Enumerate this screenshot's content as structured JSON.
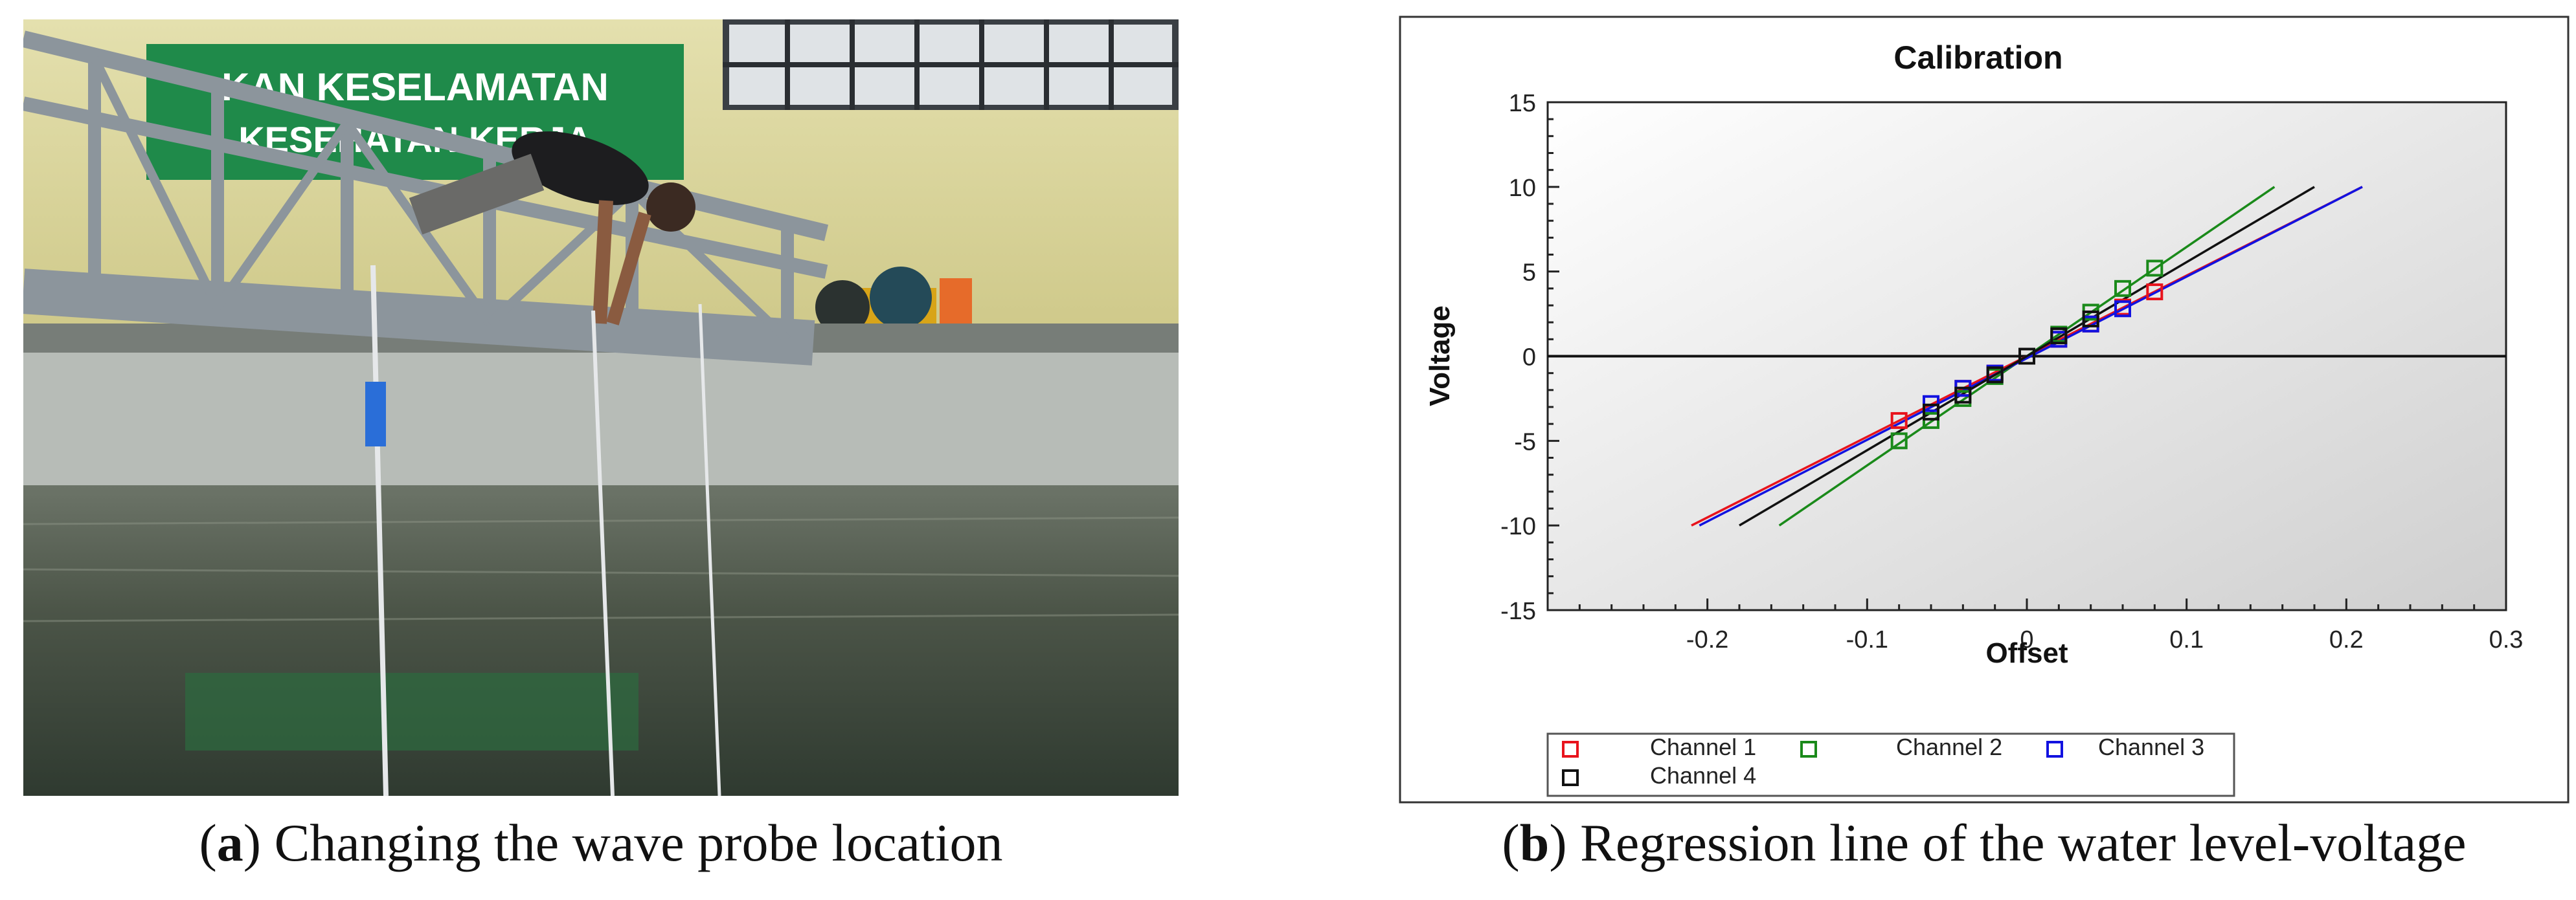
{
  "photo": {
    "sign_line1": "KAN KESELAMATAN",
    "sign_line2": "KESEHATAN KERJA",
    "colors": {
      "wall": "#d9d49a",
      "truss": "#8c959c",
      "water": "#4c5548",
      "sign": "#1f8a4a"
    }
  },
  "captions": {
    "a": {
      "letter": "a",
      "text": "Changing the wave probe location"
    },
    "b": {
      "letter": "b",
      "text": "Regression line of the water level-voltage"
    }
  },
  "chart_data": {
    "type": "scatter",
    "title": "Calibration",
    "xlabel": "Offset",
    "ylabel": "Voltage",
    "xlim": [
      -0.3,
      0.3
    ],
    "ylim": [
      -15,
      15
    ],
    "xticks": [
      "-0.2",
      "-0.1",
      "0",
      "0.1",
      "0.2",
      "0.3"
    ],
    "yticks": [
      "15",
      "10",
      "5",
      "0",
      "-5",
      "-10",
      "-15"
    ],
    "grid": false,
    "legend_position": "bottom",
    "series": [
      {
        "name": "Channel 1",
        "color": "#e8131c",
        "points": [
          [
            -0.08,
            -3.8
          ],
          [
            -0.04,
            -1.9
          ],
          [
            -0.02,
            -1.0
          ],
          [
            0.0,
            0.0
          ],
          [
            0.02,
            1.0
          ],
          [
            0.04,
            1.9
          ],
          [
            0.06,
            2.9
          ],
          [
            0.08,
            3.8
          ]
        ],
        "line": [
          [
            -0.21,
            -10.0
          ],
          [
            0.21,
            10.0
          ]
        ]
      },
      {
        "name": "Channel 2",
        "color": "#1a8a1a",
        "points": [
          [
            -0.08,
            -5.0
          ],
          [
            -0.06,
            -3.8
          ],
          [
            -0.04,
            -2.5
          ],
          [
            -0.02,
            -1.2
          ],
          [
            0.0,
            0.0
          ],
          [
            0.02,
            1.3
          ],
          [
            0.04,
            2.6
          ],
          [
            0.06,
            4.0
          ],
          [
            0.08,
            5.2
          ]
        ],
        "line": [
          [
            -0.155,
            -10.0
          ],
          [
            0.155,
            10.0
          ]
        ]
      },
      {
        "name": "Channel 3",
        "color": "#1212e0",
        "points": [
          [
            -0.06,
            -2.8
          ],
          [
            -0.04,
            -1.9
          ],
          [
            -0.02,
            -1.0
          ],
          [
            0.0,
            0.0
          ],
          [
            0.02,
            1.0
          ],
          [
            0.04,
            1.9
          ],
          [
            0.06,
            2.8
          ]
        ],
        "line": [
          [
            -0.205,
            -10.0
          ],
          [
            0.21,
            10.0
          ]
        ]
      },
      {
        "name": "Channel 4",
        "color": "#111111",
        "points": [
          [
            -0.06,
            -3.3
          ],
          [
            -0.04,
            -2.3
          ],
          [
            -0.02,
            -1.1
          ],
          [
            0.0,
            0.0
          ],
          [
            0.02,
            1.2
          ],
          [
            0.04,
            2.2
          ]
        ],
        "line": [
          [
            -0.18,
            -10.0
          ],
          [
            0.18,
            10.0
          ]
        ]
      }
    ]
  }
}
